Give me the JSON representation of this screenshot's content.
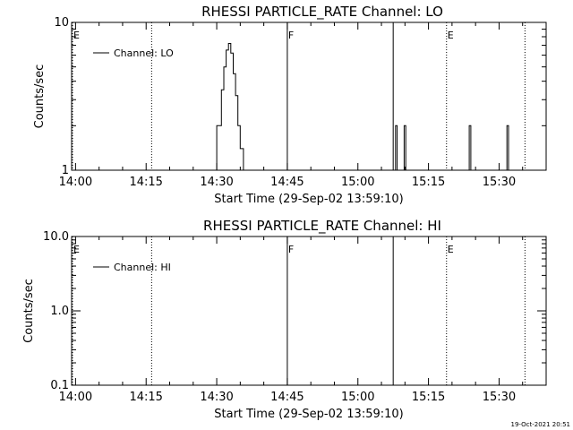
{
  "footer_timestamp": "19-Oct-2021 20:51",
  "chart_data": [
    {
      "type": "line",
      "title": "RHESSI PARTICLE_RATE Channel: LO",
      "xlabel": "Start Time (29-Sep-02 13:59:10)",
      "ylabel": "Counts/sec",
      "yscale": "log",
      "ylim": [
        1,
        10
      ],
      "xlim": [
        "13:59:10",
        "15:40:00"
      ],
      "x_ticks": [
        "14:00",
        "14:15",
        "14:30",
        "14:45",
        "15:00",
        "15:15",
        "15:30"
      ],
      "y_ticks": [
        "1",
        "10"
      ],
      "legend": "Channel: LO",
      "legend_position": "top-left",
      "markers": [
        {
          "label": "E",
          "time": "13:59:10",
          "style": "dotted"
        },
        {
          "label": "",
          "time": "14:16:10",
          "style": "dotted"
        },
        {
          "label": "F",
          "time": "14:45:00",
          "style": "solid"
        },
        {
          "label": "",
          "time": "15:07:30",
          "style": "solid"
        },
        {
          "label": "E",
          "time": "15:18:50",
          "style": "dotted"
        },
        {
          "label": "",
          "time": "15:35:30",
          "style": "dotted"
        }
      ],
      "series": [
        {
          "x": [
            "13:59:10",
            "14:30:00",
            "14:30:00",
            "14:31:00",
            "14:31:00",
            "14:31:30",
            "14:31:30",
            "14:32:00",
            "14:32:00",
            "14:32:30",
            "14:32:30",
            "14:33:00",
            "14:33:00",
            "14:33:30",
            "14:33:30",
            "14:34:00",
            "14:34:00",
            "14:34:30",
            "14:34:30",
            "14:35:00",
            "14:35:00",
            "14:35:40",
            "14:35:40",
            "15:08:00",
            "15:08:00",
            "15:08:20",
            "15:08:20",
            "15:09:50",
            "15:09:50",
            "15:10:10",
            "15:10:10",
            "15:23:40",
            "15:23:40",
            "15:24:00",
            "15:24:00",
            "15:31:40",
            "15:31:40",
            "15:32:00",
            "15:32:00",
            "15:40:00"
          ],
          "y": [
            1,
            1,
            2,
            2,
            3.5,
            3.5,
            5,
            5,
            6.5,
            6.5,
            7.2,
            7.2,
            6.2,
            6.2,
            4.5,
            4.5,
            3.2,
            3.2,
            2,
            2,
            1.4,
            1.4,
            1,
            1,
            2,
            2,
            1,
            1,
            2,
            2,
            1,
            1,
            2,
            2,
            1,
            1,
            2,
            2,
            1,
            1
          ]
        }
      ]
    },
    {
      "type": "line",
      "title": "RHESSI PARTICLE_RATE Channel: HI",
      "xlabel": "Start Time (29-Sep-02 13:59:10)",
      "ylabel": "Counts/sec",
      "yscale": "log",
      "ylim": [
        0.1,
        10
      ],
      "xlim": [
        "13:59:10",
        "15:40:00"
      ],
      "x_ticks": [
        "14:00",
        "14:15",
        "14:30",
        "14:45",
        "15:00",
        "15:15",
        "15:30"
      ],
      "y_ticks": [
        "0.1",
        "1.0",
        "10.0"
      ],
      "legend": "Channel: HI",
      "legend_position": "top-left",
      "markers": [
        {
          "label": "E",
          "time": "13:59:10",
          "style": "dotted"
        },
        {
          "label": "",
          "time": "14:16:10",
          "style": "dotted"
        },
        {
          "label": "F",
          "time": "14:45:00",
          "style": "solid"
        },
        {
          "label": "",
          "time": "15:07:30",
          "style": "solid"
        },
        {
          "label": "E",
          "time": "15:18:50",
          "style": "dotted"
        },
        {
          "label": "",
          "time": "15:35:30",
          "style": "dotted"
        }
      ],
      "series": [
        {
          "x": [],
          "y": []
        }
      ]
    }
  ]
}
